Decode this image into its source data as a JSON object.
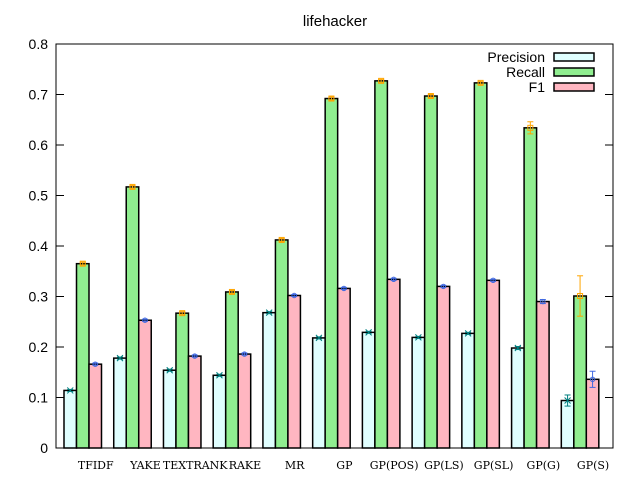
{
  "chart_data": {
    "type": "bar",
    "title": "lifehacker",
    "xlabel": "",
    "ylabel": "",
    "ylim": [
      0,
      0.8
    ],
    "yticks": [
      "0",
      "0.1",
      "0.2",
      "0.3",
      "0.4",
      "0.5",
      "0.6",
      "0.7",
      "0.8"
    ],
    "grid": false,
    "legend_position": "top-right",
    "categories": [
      "TFIDF",
      "YAKE",
      "TEXTRANK",
      "RAKE",
      "MR",
      "GP",
      "GP(POS)",
      "GP(LS)",
      "GP(SL)",
      "GP(G)",
      "GP(S)"
    ],
    "series": [
      {
        "name": "Precision",
        "color": "#e0ffff",
        "error_color": "#008080",
        "values": [
          0.114,
          0.178,
          0.154,
          0.144,
          0.268,
          0.218,
          0.229,
          0.219,
          0.227,
          0.198,
          0.094
        ],
        "errors": [
          0.002,
          0.002,
          0.002,
          0.002,
          0.002,
          0.002,
          0.002,
          0.002,
          0.002,
          0.003,
          0.011
        ]
      },
      {
        "name": "Recall",
        "color": "#90ee90",
        "error_color": "#ffa500",
        "values": [
          0.365,
          0.517,
          0.267,
          0.309,
          0.412,
          0.692,
          0.727,
          0.697,
          0.723,
          0.634,
          0.301
        ],
        "errors": [
          0.003,
          0.003,
          0.003,
          0.003,
          0.003,
          0.003,
          0.003,
          0.003,
          0.003,
          0.012,
          0.04
        ]
      },
      {
        "name": "F1",
        "color": "#ffb6c1",
        "error_color": "#4169e1",
        "values": [
          0.166,
          0.253,
          0.182,
          0.186,
          0.302,
          0.316,
          0.334,
          0.32,
          0.332,
          0.29,
          0.136
        ],
        "errors": [
          0.002,
          0.002,
          0.002,
          0.002,
          0.002,
          0.002,
          0.002,
          0.002,
          0.002,
          0.004,
          0.016
        ]
      }
    ]
  }
}
